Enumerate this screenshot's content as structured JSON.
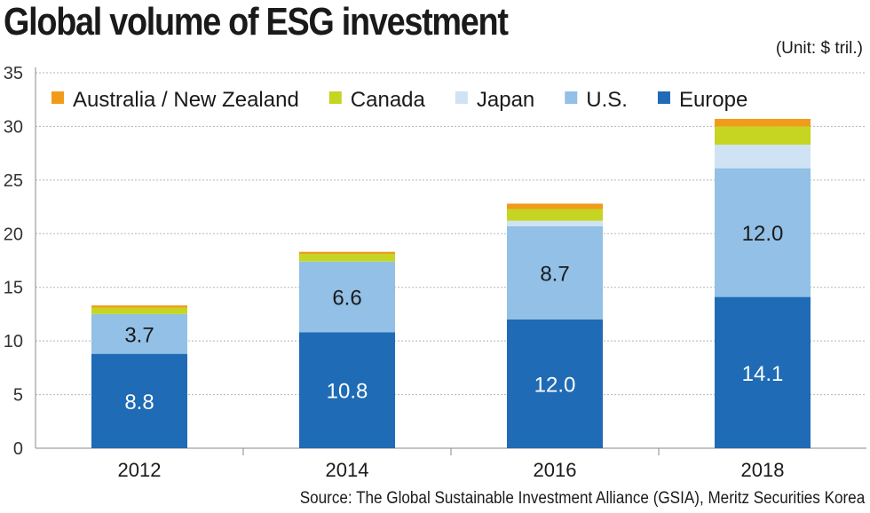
{
  "chart_data": {
    "type": "bar",
    "stacked": true,
    "title": "Global volume of ESG investment",
    "unit": "(Unit: $ tril.)",
    "source": "Source: The Global Sustainable Investment Alliance (GSIA), Meritz Securities Korea",
    "categories": [
      "2012",
      "2014",
      "2016",
      "2018"
    ],
    "ylim": [
      0,
      35
    ],
    "yticks": [
      0,
      5,
      10,
      15,
      20,
      25,
      30,
      35
    ],
    "legend_position": "top",
    "series": [
      {
        "name": "Europe",
        "color": "#1f6bb5",
        "label_color": "#ffffff",
        "values": [
          8.8,
          10.8,
          12.0,
          14.1
        ],
        "labels": [
          "8.8",
          "10.8",
          "12.0",
          "14.1"
        ]
      },
      {
        "name": "U.S.",
        "color": "#92c0e6",
        "label_color": "#1a1a1a",
        "values": [
          3.7,
          6.6,
          8.7,
          12.0
        ],
        "labels": [
          "3.7",
          "6.6",
          "8.7",
          "12.0"
        ]
      },
      {
        "name": "Japan",
        "color": "#cfe3f5",
        "label_color": "#1a1a1a",
        "values": [
          0.01,
          0.01,
          0.5,
          2.2
        ],
        "labels": null
      },
      {
        "name": "Canada",
        "color": "#c5d521",
        "label_color": "#1a1a1a",
        "values": [
          0.6,
          0.7,
          1.1,
          1.7
        ],
        "labels": null
      },
      {
        "name": "Australia / New Zealand",
        "color": "#f19b1b",
        "label_color": "#1a1a1a",
        "values": [
          0.2,
          0.2,
          0.5,
          0.7
        ],
        "labels": null
      }
    ],
    "legend_order": [
      "Australia / New Zealand",
      "Canada",
      "Japan",
      "U.S.",
      "Europe"
    ]
  }
}
